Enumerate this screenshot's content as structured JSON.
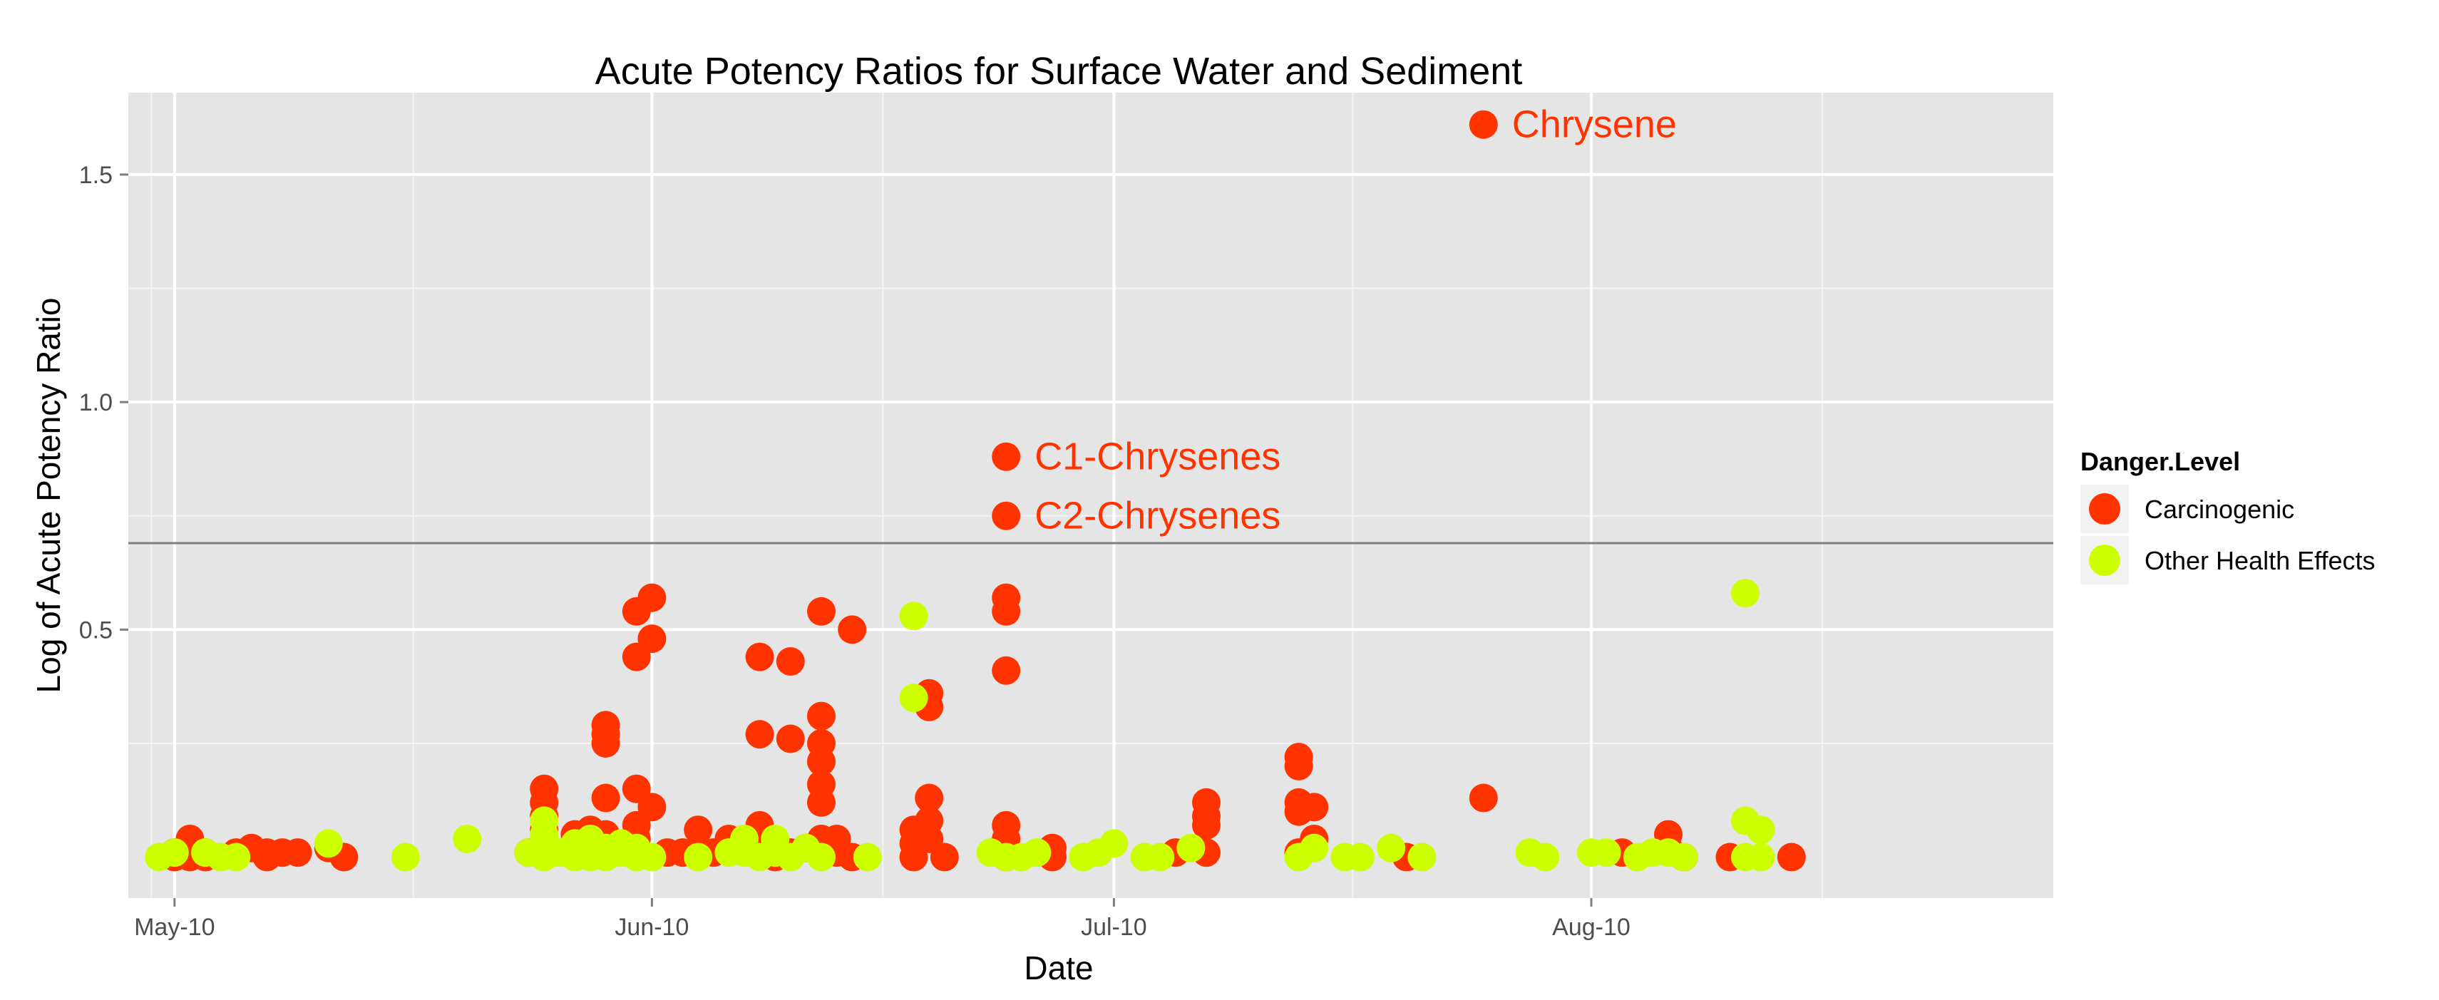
{
  "chart_data": {
    "type": "scatter",
    "title": "Acute Potency Ratios for Surface Water and Sediment",
    "xlabel": "Date",
    "ylabel": "Log of Acute Potency Ratio",
    "x_range": [
      "2010-04-28",
      "2010-08-31"
    ],
    "y_range": [
      -0.09,
      1.68
    ],
    "x_ticks": [
      {
        "date": "2010-05-01",
        "label": "May-10"
      },
      {
        "date": "2010-06-01",
        "label": "Jun-10"
      },
      {
        "date": "2010-07-01",
        "label": "Jul-10"
      },
      {
        "date": "2010-08-01",
        "label": "Aug-10"
      }
    ],
    "y_ticks": [
      {
        "value": 0.5,
        "label": "0.5"
      },
      {
        "value": 1.0,
        "label": "1.0"
      },
      {
        "value": 1.5,
        "label": "1.5"
      }
    ],
    "grid": true,
    "background": "#e5e5e5",
    "reference_line": {
      "y": 0.69,
      "color": "#7f7f7f"
    },
    "legend": {
      "title": "Danger.Level",
      "position": "right",
      "entries": [
        {
          "label": "Carcinogenic",
          "color": "#ff3300"
        },
        {
          "label": "Other Health Effects",
          "color": "#ccff00"
        }
      ]
    },
    "annotations": [
      {
        "date": "2010-07-25",
        "y": 1.61,
        "text": "Chrysene",
        "color": "#ff3300"
      },
      {
        "date": "2010-06-24",
        "y": 0.88,
        "text": "C1-Chrysenes",
        "color": "#ff3300"
      },
      {
        "date": "2010-06-24",
        "y": 0.75,
        "text": "C2-Chrysenes",
        "color": "#ff3300"
      }
    ],
    "series": [
      {
        "name": "Carcinogenic",
        "color": "#ff3300",
        "points": [
          {
            "date": "2010-05-01",
            "y": 0.0
          },
          {
            "date": "2010-05-01",
            "y": 0.01
          },
          {
            "date": "2010-05-02",
            "y": 0.0
          },
          {
            "date": "2010-05-02",
            "y": 0.01
          },
          {
            "date": "2010-05-02",
            "y": 0.04
          },
          {
            "date": "2010-05-03",
            "y": 0.0
          },
          {
            "date": "2010-05-03",
            "y": 0.01
          },
          {
            "date": "2010-05-05",
            "y": 0.01
          },
          {
            "date": "2010-05-06",
            "y": 0.02
          },
          {
            "date": "2010-05-07",
            "y": 0.0
          },
          {
            "date": "2010-05-07",
            "y": 0.01
          },
          {
            "date": "2010-05-08",
            "y": 0.01
          },
          {
            "date": "2010-05-09",
            "y": 0.01
          },
          {
            "date": "2010-05-11",
            "y": 0.02
          },
          {
            "date": "2010-05-12",
            "y": 0.0
          },
          {
            "date": "2010-05-25",
            "y": 0.15
          },
          {
            "date": "2010-05-25",
            "y": 0.12
          },
          {
            "date": "2010-05-25",
            "y": 0.09
          },
          {
            "date": "2010-05-25",
            "y": 0.06
          },
          {
            "date": "2010-05-25",
            "y": 0.03
          },
          {
            "date": "2010-05-24",
            "y": 0.01
          },
          {
            "date": "2010-05-27",
            "y": 0.02
          },
          {
            "date": "2010-05-27",
            "y": 0.05
          },
          {
            "date": "2010-05-28",
            "y": 0.06
          },
          {
            "date": "2010-05-28",
            "y": 0.03
          },
          {
            "date": "2010-05-29",
            "y": 0.29
          },
          {
            "date": "2010-05-29",
            "y": 0.27
          },
          {
            "date": "2010-05-29",
            "y": 0.25
          },
          {
            "date": "2010-05-29",
            "y": 0.13
          },
          {
            "date": "2010-05-29",
            "y": 0.05
          },
          {
            "date": "2010-05-30",
            "y": 0.02
          },
          {
            "date": "2010-05-31",
            "y": 0.54
          },
          {
            "date": "2010-05-31",
            "y": 0.44
          },
          {
            "date": "2010-05-31",
            "y": 0.15
          },
          {
            "date": "2010-05-31",
            "y": 0.07
          },
          {
            "date": "2010-05-31",
            "y": 0.04
          },
          {
            "date": "2010-06-01",
            "y": 0.57
          },
          {
            "date": "2010-06-01",
            "y": 0.48
          },
          {
            "date": "2010-06-01",
            "y": 0.11
          },
          {
            "date": "2010-06-02",
            "y": 0.01
          },
          {
            "date": "2010-06-03",
            "y": 0.01
          },
          {
            "date": "2010-06-04",
            "y": 0.06
          },
          {
            "date": "2010-06-05",
            "y": 0.01
          },
          {
            "date": "2010-06-06",
            "y": 0.04
          },
          {
            "date": "2010-06-07",
            "y": 0.03
          },
          {
            "date": "2010-06-08",
            "y": 0.05
          },
          {
            "date": "2010-06-08",
            "y": 0.07
          },
          {
            "date": "2010-06-08",
            "y": 0.27
          },
          {
            "date": "2010-06-08",
            "y": 0.44
          },
          {
            "date": "2010-06-09",
            "y": 0.03
          },
          {
            "date": "2010-06-09",
            "y": 0.0
          },
          {
            "date": "2010-06-10",
            "y": 0.01
          },
          {
            "date": "2010-06-10",
            "y": 0.26
          },
          {
            "date": "2010-06-10",
            "y": 0.43
          },
          {
            "date": "2010-06-11",
            "y": 0.02
          },
          {
            "date": "2010-06-12",
            "y": 0.54
          },
          {
            "date": "2010-06-12",
            "y": 0.31
          },
          {
            "date": "2010-06-12",
            "y": 0.25
          },
          {
            "date": "2010-06-12",
            "y": 0.21
          },
          {
            "date": "2010-06-12",
            "y": 0.16
          },
          {
            "date": "2010-06-12",
            "y": 0.12
          },
          {
            "date": "2010-06-12",
            "y": 0.04
          },
          {
            "date": "2010-06-13",
            "y": 0.04
          },
          {
            "date": "2010-06-13",
            "y": 0.01
          },
          {
            "date": "2010-06-14",
            "y": 0.5
          },
          {
            "date": "2010-06-14",
            "y": 0.0
          },
          {
            "date": "2010-06-18",
            "y": 0.06
          },
          {
            "date": "2010-06-18",
            "y": 0.03
          },
          {
            "date": "2010-06-18",
            "y": 0.0
          },
          {
            "date": "2010-06-19",
            "y": 0.36
          },
          {
            "date": "2010-06-19",
            "y": 0.33
          },
          {
            "date": "2010-06-19",
            "y": 0.13
          },
          {
            "date": "2010-06-19",
            "y": 0.08
          },
          {
            "date": "2010-06-19",
            "y": 0.04
          },
          {
            "date": "2010-06-20",
            "y": 0.0
          },
          {
            "date": "2010-06-24",
            "y": 0.88
          },
          {
            "date": "2010-06-24",
            "y": 0.75
          },
          {
            "date": "2010-06-24",
            "y": 0.57
          },
          {
            "date": "2010-06-24",
            "y": 0.54
          },
          {
            "date": "2010-06-24",
            "y": 0.41
          },
          {
            "date": "2010-06-24",
            "y": 0.07
          },
          {
            "date": "2010-06-24",
            "y": 0.04
          },
          {
            "date": "2010-06-24",
            "y": 0.0
          },
          {
            "date": "2010-06-27",
            "y": 0.02
          },
          {
            "date": "2010-06-27",
            "y": 0.0
          },
          {
            "date": "2010-07-05",
            "y": 0.01
          },
          {
            "date": "2010-07-07",
            "y": 0.12
          },
          {
            "date": "2010-07-07",
            "y": 0.09
          },
          {
            "date": "2010-07-07",
            "y": 0.07
          },
          {
            "date": "2010-07-07",
            "y": 0.01
          },
          {
            "date": "2010-07-13",
            "y": 0.22
          },
          {
            "date": "2010-07-13",
            "y": 0.2
          },
          {
            "date": "2010-07-13",
            "y": 0.12
          },
          {
            "date": "2010-07-13",
            "y": 0.1
          },
          {
            "date": "2010-07-13",
            "y": 0.01
          },
          {
            "date": "2010-07-14",
            "y": 0.11
          },
          {
            "date": "2010-07-14",
            "y": 0.04
          },
          {
            "date": "2010-07-20",
            "y": 0.0
          },
          {
            "date": "2010-07-25",
            "y": 1.61
          },
          {
            "date": "2010-07-25",
            "y": 0.13
          },
          {
            "date": "2010-08-03",
            "y": 0.01
          },
          {
            "date": "2010-08-06",
            "y": 0.05
          },
          {
            "date": "2010-08-06",
            "y": 0.02
          },
          {
            "date": "2010-08-07",
            "y": 0.0
          },
          {
            "date": "2010-08-10",
            "y": 0.0
          },
          {
            "date": "2010-08-14",
            "y": 0.0
          }
        ]
      },
      {
        "name": "Other Health Effects",
        "color": "#ccff00",
        "points": [
          {
            "date": "2010-04-30",
            "y": 0.0
          },
          {
            "date": "2010-05-01",
            "y": 0.01
          },
          {
            "date": "2010-05-03",
            "y": 0.01
          },
          {
            "date": "2010-05-04",
            "y": 0.0
          },
          {
            "date": "2010-05-05",
            "y": 0.0
          },
          {
            "date": "2010-05-11",
            "y": 0.03
          },
          {
            "date": "2010-05-16",
            "y": 0.0
          },
          {
            "date": "2010-05-20",
            "y": 0.04
          },
          {
            "date": "2010-05-24",
            "y": 0.01
          },
          {
            "date": "2010-05-25",
            "y": 0.08
          },
          {
            "date": "2010-05-25",
            "y": 0.05
          },
          {
            "date": "2010-05-25",
            "y": 0.0
          },
          {
            "date": "2010-05-26",
            "y": 0.01
          },
          {
            "date": "2010-05-27",
            "y": 0.0
          },
          {
            "date": "2010-05-27",
            "y": 0.03
          },
          {
            "date": "2010-05-28",
            "y": 0.04
          },
          {
            "date": "2010-05-28",
            "y": 0.0
          },
          {
            "date": "2010-05-29",
            "y": 0.02
          },
          {
            "date": "2010-05-29",
            "y": 0.0
          },
          {
            "date": "2010-05-30",
            "y": 0.01
          },
          {
            "date": "2010-05-30",
            "y": 0.03
          },
          {
            "date": "2010-05-31",
            "y": 0.02
          },
          {
            "date": "2010-05-31",
            "y": 0.0
          },
          {
            "date": "2010-06-01",
            "y": 0.0
          },
          {
            "date": "2010-06-04",
            "y": 0.0
          },
          {
            "date": "2010-06-06",
            "y": 0.01
          },
          {
            "date": "2010-06-07",
            "y": 0.04
          },
          {
            "date": "2010-06-07",
            "y": 0.01
          },
          {
            "date": "2010-06-08",
            "y": 0.0
          },
          {
            "date": "2010-06-09",
            "y": 0.04
          },
          {
            "date": "2010-06-09",
            "y": 0.01
          },
          {
            "date": "2010-06-10",
            "y": 0.0
          },
          {
            "date": "2010-06-11",
            "y": 0.02
          },
          {
            "date": "2010-06-12",
            "y": 0.0
          },
          {
            "date": "2010-06-15",
            "y": 0.0
          },
          {
            "date": "2010-06-18",
            "y": 0.53
          },
          {
            "date": "2010-06-18",
            "y": 0.35
          },
          {
            "date": "2010-06-23",
            "y": 0.01
          },
          {
            "date": "2010-06-24",
            "y": 0.0
          },
          {
            "date": "2010-06-25",
            "y": 0.0
          },
          {
            "date": "2010-06-26",
            "y": 0.01
          },
          {
            "date": "2010-06-29",
            "y": 0.0
          },
          {
            "date": "2010-06-30",
            "y": 0.01
          },
          {
            "date": "2010-07-01",
            "y": 0.03
          },
          {
            "date": "2010-07-03",
            "y": 0.0
          },
          {
            "date": "2010-07-04",
            "y": 0.0
          },
          {
            "date": "2010-07-06",
            "y": 0.02
          },
          {
            "date": "2010-07-13",
            "y": 0.0
          },
          {
            "date": "2010-07-14",
            "y": 0.02
          },
          {
            "date": "2010-07-16",
            "y": 0.0
          },
          {
            "date": "2010-07-17",
            "y": 0.0
          },
          {
            "date": "2010-07-19",
            "y": 0.02
          },
          {
            "date": "2010-07-21",
            "y": 0.0
          },
          {
            "date": "2010-07-28",
            "y": 0.01
          },
          {
            "date": "2010-07-29",
            "y": 0.0
          },
          {
            "date": "2010-08-01",
            "y": 0.01
          },
          {
            "date": "2010-08-02",
            "y": 0.01
          },
          {
            "date": "2010-08-04",
            "y": 0.0
          },
          {
            "date": "2010-08-05",
            "y": 0.01
          },
          {
            "date": "2010-08-06",
            "y": 0.01
          },
          {
            "date": "2010-08-07",
            "y": 0.0
          },
          {
            "date": "2010-08-11",
            "y": 0.58
          },
          {
            "date": "2010-08-11",
            "y": 0.08
          },
          {
            "date": "2010-08-11",
            "y": 0.0
          },
          {
            "date": "2010-08-12",
            "y": 0.06
          },
          {
            "date": "2010-08-12",
            "y": 0.0
          }
        ]
      }
    ]
  }
}
